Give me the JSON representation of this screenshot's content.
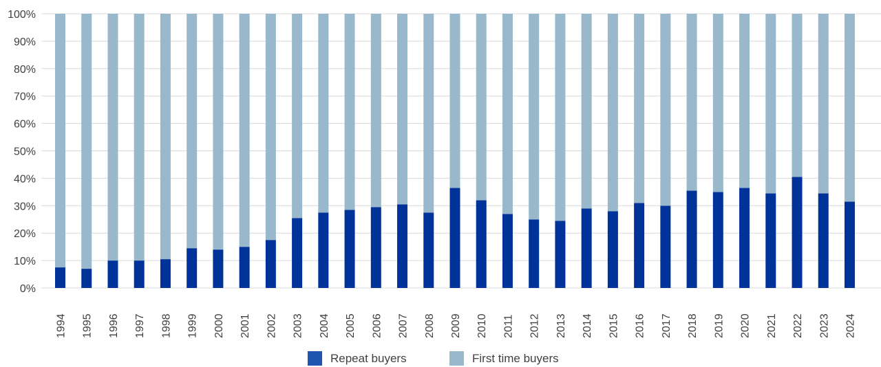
{
  "chart_data": {
    "type": "bar",
    "stacked": true,
    "percent_stacked": true,
    "title": "",
    "xlabel": "",
    "ylabel": "",
    "ylim": [
      0,
      100
    ],
    "y_ticks": [
      "0%",
      "10%",
      "20%",
      "30%",
      "40%",
      "50%",
      "60%",
      "70%",
      "80%",
      "90%",
      "100%"
    ],
    "grid": true,
    "legend_position": "bottom",
    "categories": [
      "1994",
      "1995",
      "1996",
      "1997",
      "1998",
      "1999",
      "2000",
      "2001",
      "2002",
      "2003",
      "2004",
      "2005",
      "2006",
      "2007",
      "2008",
      "2009",
      "2010",
      "2011",
      "2012",
      "2013",
      "2014",
      "2015",
      "2016",
      "2017",
      "2018",
      "2019",
      "2020",
      "2021",
      "2022",
      "2023",
      "2024"
    ],
    "series": [
      {
        "name": "Repeat buyers",
        "color": "#003399",
        "legend_color": "#1d55b0",
        "values": [
          7.5,
          7,
          10,
          10,
          10.5,
          14.5,
          14,
          15,
          17.5,
          25.5,
          27.5,
          28.5,
          29.5,
          30.5,
          27.5,
          36.5,
          32,
          27,
          25,
          24.5,
          29,
          28,
          31,
          30,
          35.5,
          35,
          36.5,
          34.5,
          40.5,
          34.5,
          31.5
        ]
      },
      {
        "name": "First time buyers",
        "color": "#99b8cc",
        "values": [
          92.5,
          93,
          90,
          90,
          89.5,
          85.5,
          86,
          85,
          82.5,
          74.5,
          72.5,
          71.5,
          70.5,
          69.5,
          72.5,
          63.5,
          68,
          73,
          75,
          75.5,
          71,
          72,
          69,
          70,
          64.5,
          65,
          63.5,
          65.5,
          59.5,
          65.5,
          68.5
        ]
      }
    ]
  }
}
